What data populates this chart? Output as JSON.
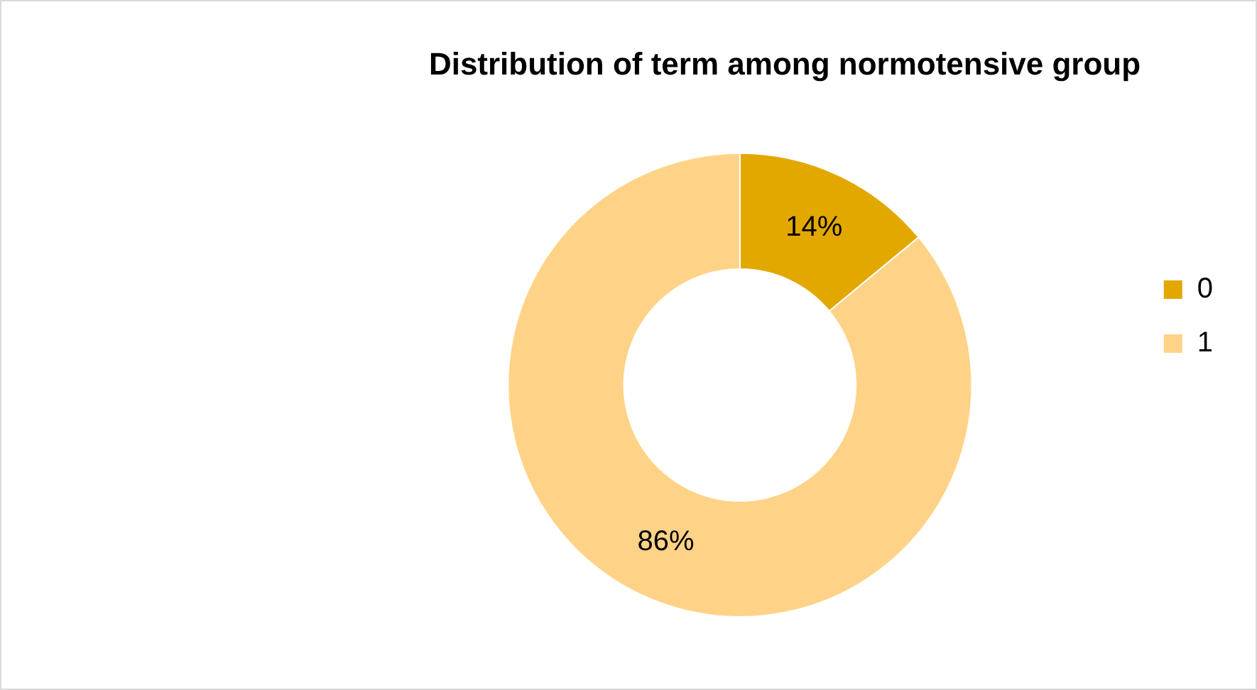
{
  "chart_data": {
    "type": "donut",
    "title": "Distribution of term among normotensive group",
    "categories": [
      "0",
      "1"
    ],
    "values": [
      14,
      86
    ],
    "value_labels": [
      "14%",
      "86%"
    ],
    "colors": [
      "#e3a800",
      "#ffd387"
    ],
    "legend": "right"
  }
}
